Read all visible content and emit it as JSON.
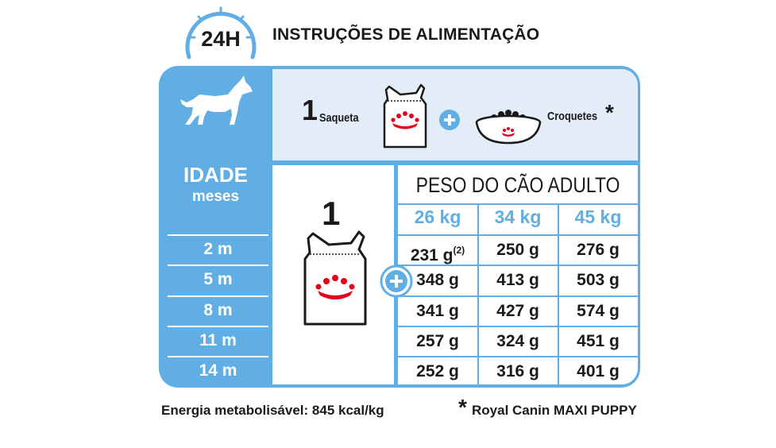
{
  "header": {
    "badge": "24H",
    "title": "INSTRUÇÕES DE ALIMENTAÇÃO"
  },
  "icons": {
    "dog": "dog-silhouette-icon",
    "clock": "clock-24h-icon",
    "pouch": "wet-food-pouch-icon",
    "bowl": "kibble-bowl-icon",
    "plus": "plus-circle-icon",
    "crown": "royal-canin-crown-logo"
  },
  "colors": {
    "accent_blue": "#61aee4",
    "light_panel": "#e3edf8",
    "brand_red": "#e2001a"
  },
  "top_row": {
    "pouch_qty": "1",
    "pouch_label": "Saqueta",
    "kibble_label": "Croquetes",
    "kibble_mark": "*"
  },
  "age": {
    "title": "IDADE",
    "subtitle": "meses",
    "rows": [
      "2 m",
      "5 m",
      "8 m",
      "11 m",
      "14 m"
    ]
  },
  "middle": {
    "pouch_qty": "1"
  },
  "weights": {
    "title": "PESO DO CÃO ADULTO",
    "columns": [
      "26 kg",
      "34 kg",
      "45 kg"
    ],
    "rows": [
      [
        "231 g",
        "250 g",
        "276 g"
      ],
      [
        "348 g",
        "413 g",
        "503 g"
      ],
      [
        "341 g",
        "427 g",
        "574 g"
      ],
      [
        "257 g",
        "324 g",
        "451 g"
      ],
      [
        "252 g",
        "316 g",
        "401 g"
      ]
    ],
    "footnote_ref": "(2)"
  },
  "footer": {
    "energy": "Energia metabolisável: 845 kcal/kg",
    "brand_mark": "*",
    "brand": "Royal Canin MAXI PUPPY"
  }
}
